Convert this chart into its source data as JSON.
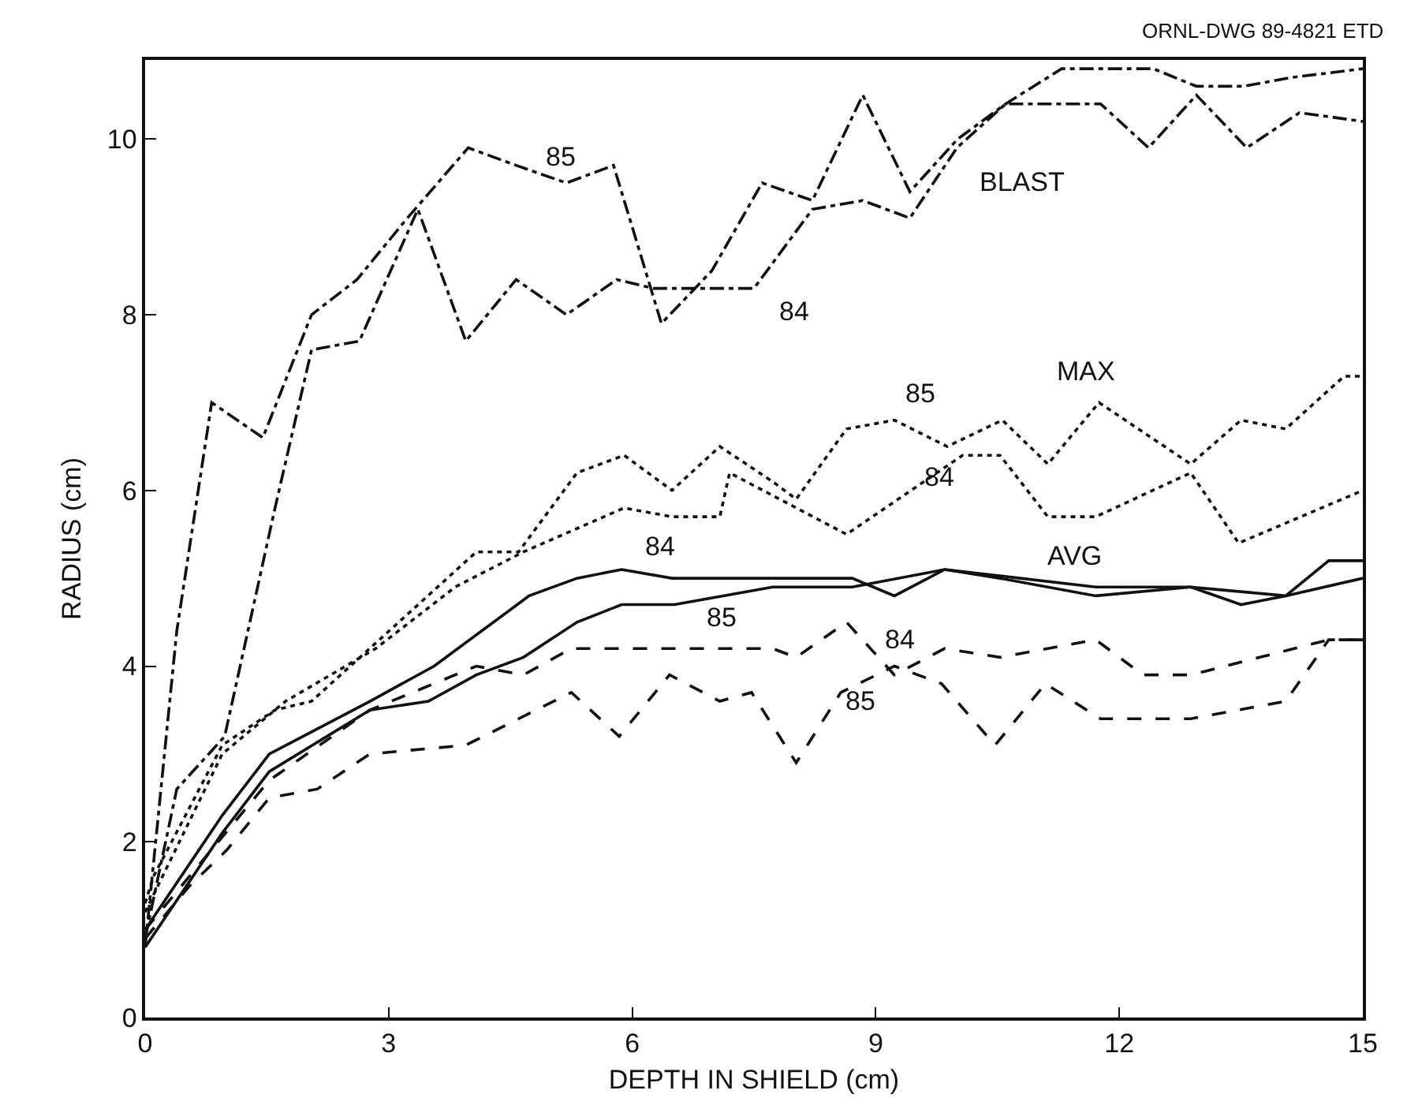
{
  "chart_data": {
    "type": "line",
    "xlabel": "DEPTH IN SHIELD (cm)",
    "ylabel": "RADIUS (cm)",
    "xlim": [
      0,
      15
    ],
    "xticks": [
      0,
      3,
      6,
      9,
      12,
      15
    ],
    "ylim": [
      0,
      10.9
    ],
    "yticks": [
      0,
      2,
      4,
      6,
      8,
      10
    ],
    "grid": false,
    "legend": false,
    "marker": "none",
    "series": [
      {
        "name": "85",
        "color": "#111111",
        "line_style": "dashdot",
        "x": [
          0,
          0.39,
          0.82,
          1.45,
          2.05,
          2.61,
          3.23,
          3.98,
          4.57,
          5.19,
          5.77,
          6.36,
          6.98,
          7.6,
          8.22,
          8.84,
          9.42,
          10.01,
          10.6,
          11.29,
          12.42,
          12.95,
          13.53,
          14.12,
          15
        ],
        "values": [
          0.8,
          4.4,
          7.0,
          6.6,
          8.0,
          8.4,
          9.1,
          9.9,
          9.7,
          9.5,
          9.7,
          7.9,
          8.5,
          9.5,
          9.3,
          10.5,
          9.4,
          10.0,
          10.4,
          10.8,
          10.8,
          10.6,
          10.6,
          10.7,
          10.8
        ]
      },
      {
        "name": "84",
        "color": "#111111",
        "line_style": "dashdot",
        "x": [
          0,
          0.39,
          0.98,
          1.6,
          2.05,
          2.64,
          3.36,
          3.95,
          4.57,
          5.19,
          5.81,
          6.26,
          7.5,
          8.22,
          8.84,
          9.42,
          10.0,
          10.6,
          11.77,
          12.36,
          12.95,
          13.57,
          14.22,
          15
        ],
        "values": [
          0.9,
          2.6,
          3.2,
          5.8,
          7.6,
          7.7,
          9.2,
          7.7,
          8.4,
          8.0,
          8.4,
          8.3,
          8.3,
          9.2,
          9.3,
          9.1,
          9.9,
          10.4,
          10.4,
          9.9,
          10.5,
          9.9,
          10.3,
          10.2
        ]
      },
      {
        "name": "85",
        "color": "#111111",
        "line_style": "dotted",
        "x": [
          0,
          0.1,
          0.95,
          1.6,
          2.05,
          4.08,
          4.6,
          5.32,
          5.9,
          6.49,
          7.08,
          7.73,
          8.02,
          8.64,
          9.23,
          9.88,
          10.56,
          11.12,
          11.75,
          12.88,
          13.5,
          14.05,
          14.77,
          15
        ],
        "values": [
          1.3,
          1.6,
          3.1,
          3.5,
          3.6,
          5.3,
          5.3,
          6.2,
          6.4,
          6.0,
          6.5,
          6.1,
          5.9,
          6.7,
          6.8,
          6.5,
          6.8,
          6.3,
          7.0,
          6.3,
          6.8,
          6.7,
          7.3,
          7.3
        ]
      },
      {
        "name": "84",
        "color": "#111111",
        "line_style": "dotted",
        "x": [
          0,
          0.95,
          1.73,
          2.84,
          3.82,
          4.66,
          5.9,
          6.49,
          7.08,
          7.2,
          8.64,
          10.07,
          10.53,
          11.12,
          11.71,
          12.88,
          13.47,
          15
        ],
        "values": [
          1.2,
          3.0,
          3.6,
          4.2,
          4.9,
          5.3,
          5.8,
          5.7,
          5.7,
          6.2,
          5.5,
          6.4,
          6.4,
          5.7,
          5.7,
          6.2,
          5.4,
          6.0
        ]
      },
      {
        "name": "84",
        "color": "#111111",
        "line_style": "solid",
        "x": [
          0,
          0.95,
          1.53,
          2.77,
          3.56,
          4.73,
          5.32,
          5.87,
          6.49,
          7.73,
          8.71,
          9.23,
          9.85,
          11.71,
          12.88,
          13.5,
          14.05,
          15
        ],
        "values": [
          1.0,
          2.3,
          3.0,
          3.6,
          4.0,
          4.8,
          5.0,
          5.1,
          5.0,
          5.0,
          5.0,
          4.8,
          5.1,
          4.9,
          4.9,
          4.7,
          4.8,
          5.0
        ]
      },
      {
        "name": "85",
        "color": "#111111",
        "line_style": "solid",
        "x": [
          0,
          0.95,
          1.53,
          2.77,
          3.49,
          4.08,
          4.66,
          5.32,
          5.87,
          6.52,
          7.73,
          8.71,
          9.85,
          10.53,
          11.71,
          12.88,
          14.05,
          14.58,
          15
        ],
        "values": [
          0.8,
          2.1,
          2.8,
          3.5,
          3.6,
          3.9,
          4.1,
          4.5,
          4.7,
          4.7,
          4.9,
          4.9,
          5.1,
          5.0,
          4.8,
          4.9,
          4.8,
          5.2,
          5.2
        ]
      },
      {
        "name": "84",
        "color": "#111111",
        "line_style": "dashed",
        "x": [
          0,
          0.9,
          1.53,
          2.77,
          4.08,
          4.66,
          5.25,
          7.73,
          8.02,
          8.64,
          9.23,
          9.85,
          10.53,
          11.71,
          12.29,
          12.88,
          14.58,
          15
        ],
        "values": [
          1.0,
          2.0,
          2.7,
          3.5,
          4.0,
          3.9,
          4.2,
          4.2,
          4.1,
          4.5,
          3.9,
          4.2,
          4.1,
          4.3,
          3.9,
          3.9,
          4.3,
          4.3
        ]
      },
      {
        "name": "85",
        "color": "#111111",
        "line_style": "dashed",
        "x": [
          0,
          0.55,
          1.0,
          1.53,
          2.12,
          2.77,
          3.95,
          5.25,
          5.84,
          6.46,
          7.08,
          7.47,
          8.02,
          8.57,
          9.23,
          9.81,
          10.47,
          11.09,
          11.77,
          12.88,
          14.05,
          14.58,
          15
        ],
        "values": [
          0.9,
          1.5,
          1.9,
          2.5,
          2.6,
          3.0,
          3.1,
          3.7,
          3.2,
          3.9,
          3.6,
          3.7,
          2.9,
          3.7,
          4.0,
          3.8,
          3.1,
          3.8,
          3.4,
          3.4,
          3.6,
          4.3,
          4.3
        ]
      }
    ],
    "annotations": [
      "ORNL-DWG 89-4821 ETD",
      "BLAST",
      "MAX",
      "AVG"
    ]
  }
}
